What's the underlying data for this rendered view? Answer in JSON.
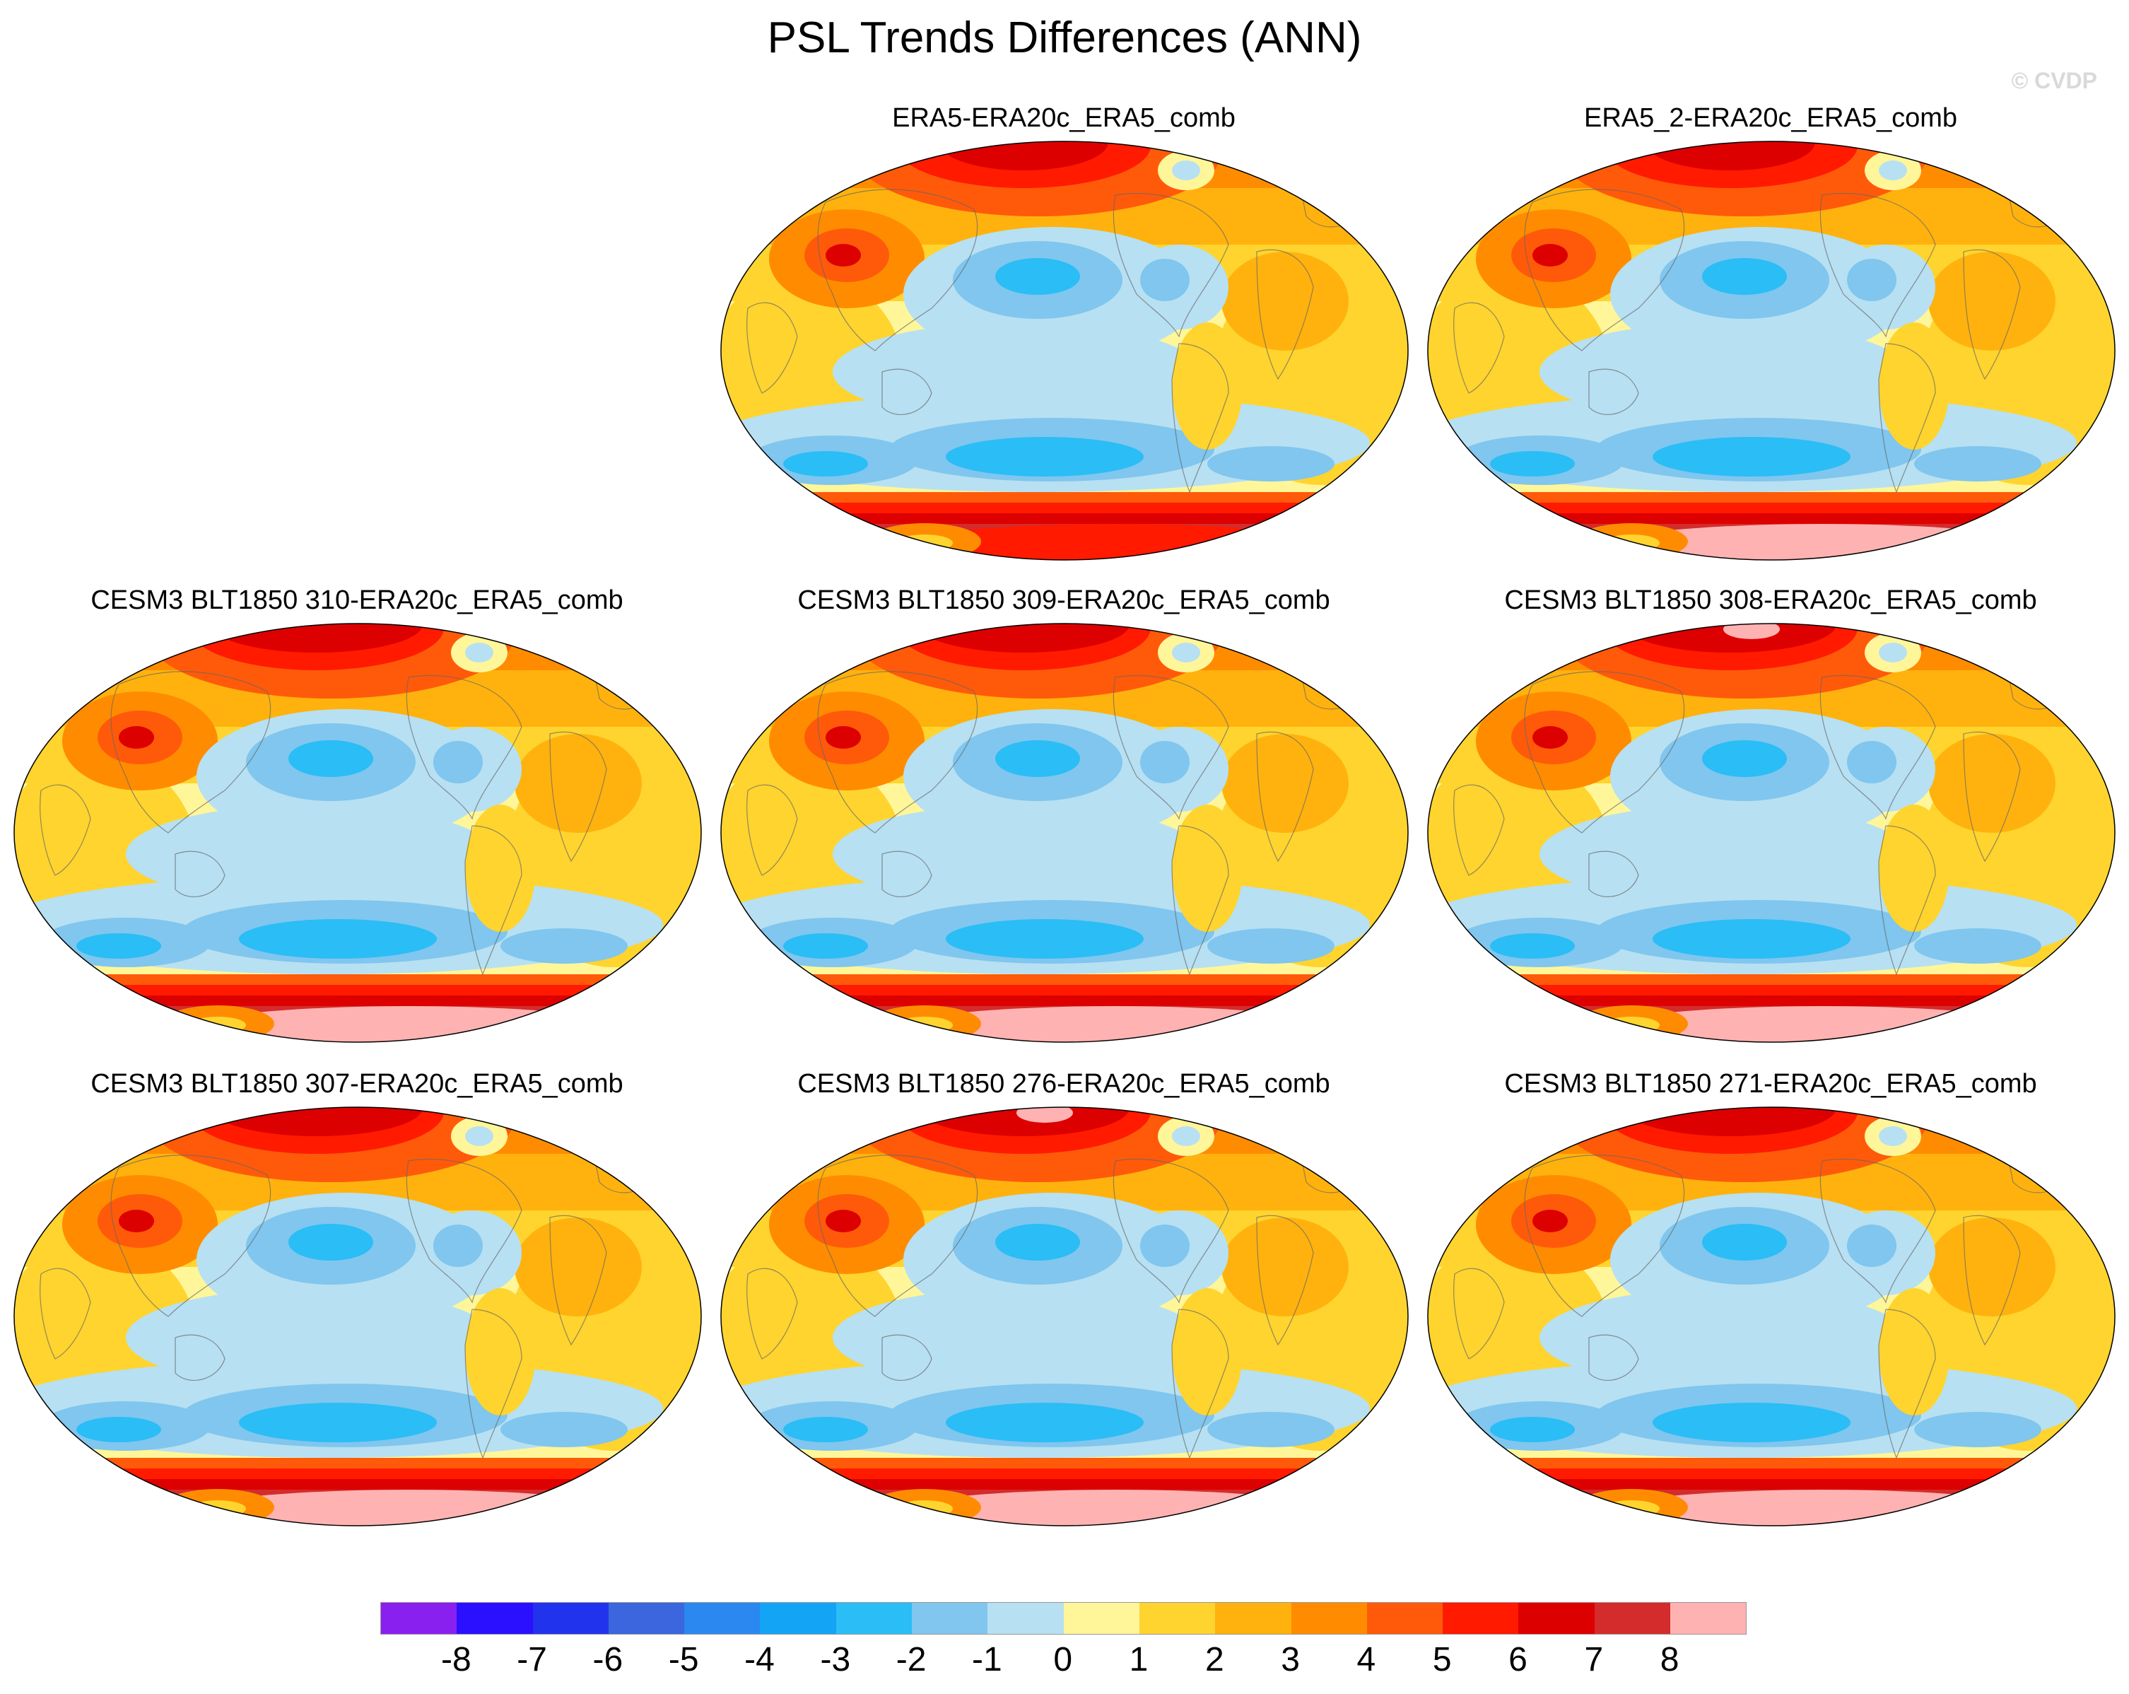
{
  "title": "PSL Trends Differences (ANN)",
  "watermark": "© CVDP",
  "panels": [
    {
      "title": "ERA5-ERA20c_ERA5_comb",
      "variant": 0
    },
    {
      "title": "ERA5_2-ERA20c_ERA5_comb",
      "variant": 1
    },
    {
      "title": "CESM3 BLT1850 310-ERA20c_ERA5_comb",
      "variant": 2
    },
    {
      "title": "CESM3 BLT1850 309-ERA20c_ERA5_comb",
      "variant": 2
    },
    {
      "title": "CESM3 BLT1850 308-ERA20c_ERA5_comb",
      "variant": 3
    },
    {
      "title": "CESM3 BLT1850 307-ERA20c_ERA5_comb",
      "variant": 2
    },
    {
      "title": "CESM3 BLT1850 276-ERA20c_ERA5_comb",
      "variant": 3
    },
    {
      "title": "CESM3 BLT1850 271-ERA20c_ERA5_comb",
      "variant": 2
    }
  ],
  "colorbar": {
    "labels": [
      "-8",
      "-7",
      "-6",
      "-5",
      "-4",
      "-3",
      "-2",
      "-1",
      "0",
      "1",
      "2",
      "3",
      "4",
      "5",
      "6",
      "7",
      "8"
    ],
    "colors": [
      "#8a20f0",
      "#2a10ff",
      "#2233ee",
      "#3b66dd",
      "#2b88f0",
      "#14a4f5",
      "#2bbdf5",
      "#80c6ee",
      "#b7e0f2",
      "#fff69a",
      "#ffd42e",
      "#ffb20d",
      "#ff8c00",
      "#ff5a0a",
      "#ff1a00",
      "#dd0000",
      "#d42c2c",
      "#ffb2b2"
    ]
  }
}
